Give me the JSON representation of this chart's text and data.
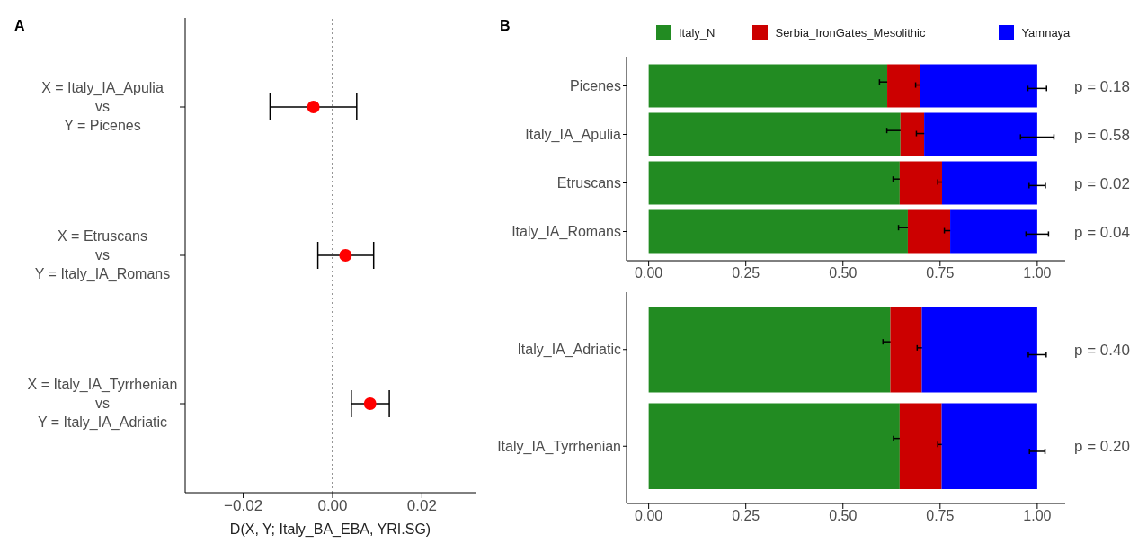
{
  "chart_data": [
    {
      "type": "scatter",
      "title": "A",
      "orientation": "horizontal",
      "categories": [
        "X = Italy_IA_Apulia\nvs\nY = Picenes",
        "X = Etruscans\nvs\nY = Italy_IA_Romans",
        "X = Italy_IA_Tyrrhenian\nvs\nY = Italy_IA_Adriatic"
      ],
      "values": [
        -0.0043,
        0.0029,
        0.0084
      ],
      "errors": [
        [
          -0.014,
          0.0054
        ],
        [
          -0.0033,
          0.0092
        ],
        [
          0.0042,
          0.0127
        ]
      ],
      "color": "#ff0000",
      "marker": "circle",
      "xlim": [
        -0.033,
        0.032
      ],
      "xticks": [
        {
          "value": -0.02,
          "label": "−0.02"
        },
        {
          "value": 0,
          "label": "0.00"
        },
        {
          "value": 0.02,
          "label": "0.02"
        }
      ],
      "xlabel": "D(X, Y; Italy_BA_EBA, YRI.SG)",
      "ref_lines": [
        {
          "axis": "x",
          "value": 0,
          "line_style": "dotted",
          "color": "#333333"
        }
      ]
    },
    {
      "type": "bar",
      "title": "B",
      "orientation": "horizontal",
      "stacked": true,
      "categories": [
        "Picenes",
        "Italy_IA_Apulia",
        "Etruscans",
        "Italy_IA_Romans"
      ],
      "series": [
        {
          "name": "Italy_N",
          "color": "#228b22",
          "values": [
            0.614,
            0.648,
            0.646,
            0.667
          ],
          "errors": [
            0.02,
            0.035,
            0.017,
            0.024
          ]
        },
        {
          "name": "Serbia_IronGates_Mesolithic",
          "color": "#cc0000",
          "values": [
            0.085,
            0.061,
            0.109,
            0.109
          ],
          "errors": [
            0.012,
            0.02,
            0.011,
            0.015
          ]
        },
        {
          "name": "Yamnaya",
          "color": "#0000ff",
          "values": [
            0.301,
            0.291,
            0.245,
            0.224
          ],
          "errors": [
            0.024,
            0.043,
            0.021,
            0.029
          ]
        }
      ],
      "xlim": [
        -0.057,
        1.072
      ],
      "xticks": [
        {
          "value": 0,
          "label": "0.00"
        },
        {
          "value": 0.25,
          "label": "0.25"
        },
        {
          "value": 0.5,
          "label": "0.50"
        },
        {
          "value": 0.75,
          "label": "0.75"
        },
        {
          "value": 1,
          "label": "1.00"
        }
      ],
      "legend": "top",
      "annotations": [
        "p = 0.18",
        "p = 0.58",
        "p = 0.02",
        "p = 0.04"
      ]
    },
    {
      "type": "bar",
      "orientation": "horizontal",
      "stacked": true,
      "categories": [
        "Italy_IA_Adriatic",
        "Italy_IA_Tyrrhenian"
      ],
      "series": [
        {
          "color": "#228b22",
          "values": [
            0.622,
            0.646
          ],
          "errors": [
            0.019,
            0.016
          ]
        },
        {
          "color": "#cc0000",
          "values": [
            0.081,
            0.108
          ],
          "errors": [
            0.012,
            0.01
          ]
        },
        {
          "color": "#0000ff",
          "values": [
            0.297,
            0.246
          ],
          "errors": [
            0.023,
            0.02
          ]
        }
      ],
      "xlim": [
        -0.057,
        1.072
      ],
      "xticks": [
        {
          "value": 0,
          "label": "0.00"
        },
        {
          "value": 0.25,
          "label": "0.25"
        },
        {
          "value": 0.5,
          "label": "0.50"
        },
        {
          "value": 0.75,
          "label": "0.75"
        },
        {
          "value": 1,
          "label": "1.00"
        }
      ],
      "annotations": [
        "p = 0.40",
        "p = 0.20"
      ]
    }
  ]
}
